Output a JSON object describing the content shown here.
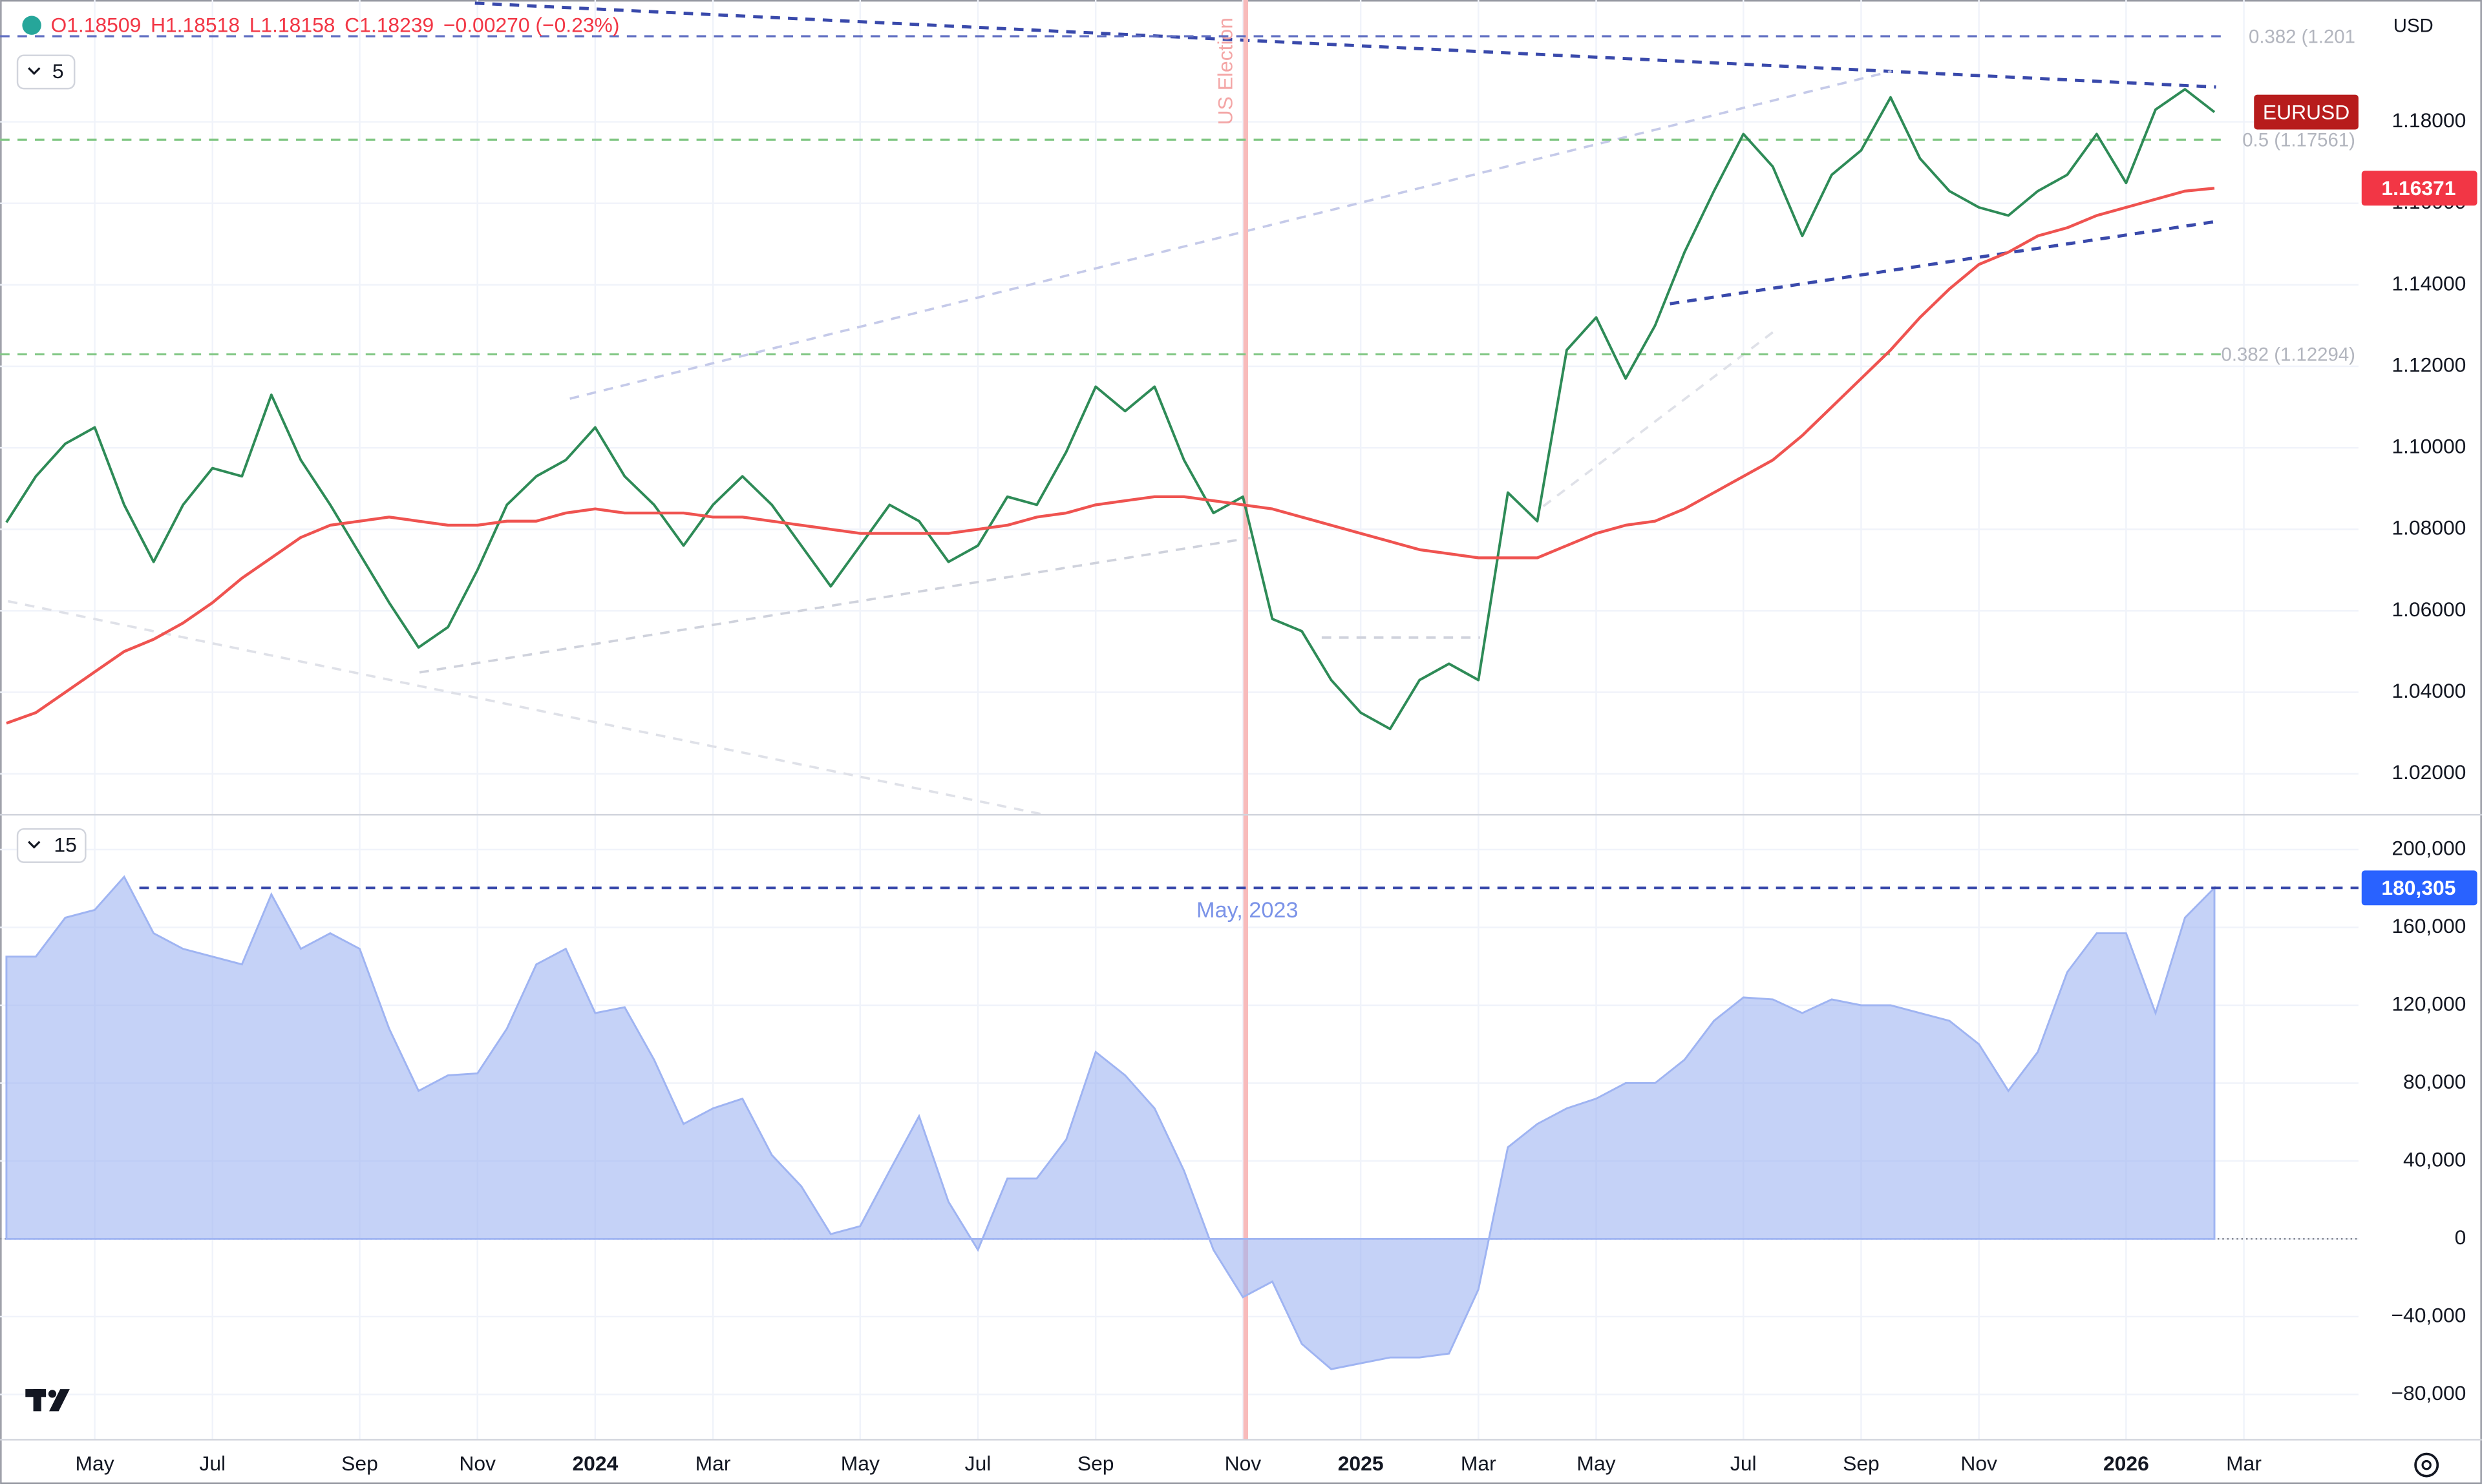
{
  "legend": [
    "O1.18509",
    "H1.18518",
    "L1.18158",
    "C1.18239",
    "−0.00270 (−0.23%)"
  ],
  "ui": {
    "currency": "USD",
    "pane_1_count": "5",
    "pane_2_count": "15"
  },
  "chart_data": [
    {
      "type": "line",
      "annotation": "US Election",
      "ylim": [
        1.0111,
        1.2099
      ],
      "yticks": [
        {
          "value": 1.02,
          "label": "1.02000"
        },
        {
          "value": 1.04,
          "label": "1.04000"
        },
        {
          "value": 1.06,
          "label": "1.06000"
        },
        {
          "value": 1.08,
          "label": "1.08000"
        },
        {
          "value": 1.1,
          "label": "1.10000"
        },
        {
          "value": 1.12,
          "label": "1.12000"
        },
        {
          "value": 1.14,
          "label": "1.14000"
        },
        {
          "value": 1.16,
          "label": "1.16000"
        },
        {
          "value": 1.18,
          "label": "1.18000"
        }
      ],
      "grid": true,
      "levels": [
        {
          "value": 1.201,
          "label": "0.382 (1.201",
          "color": "#5c6bc0"
        },
        {
          "value": 1.17561,
          "label": "0.5 (1.17561)",
          "color": "#81c784"
        },
        {
          "value": 1.12294,
          "label": "0.382 (1.12294)",
          "color": "#81c784"
        }
      ],
      "series": [
        {
          "name": "EURUSD",
          "color": "#2e8b57",
          "tag_color": "#b71c1c",
          "values": [
            1.0817,
            1.093,
            1.101,
            1.105,
            1.086,
            1.072,
            1.086,
            1.095,
            1.093,
            1.113,
            1.097,
            1.086,
            1.074,
            1.062,
            1.051,
            1.056,
            1.07,
            1.086,
            1.093,
            1.097,
            1.105,
            1.093,
            1.086,
            1.076,
            1.086,
            1.093,
            1.086,
            1.076,
            1.066,
            1.076,
            1.086,
            1.082,
            1.072,
            1.076,
            1.088,
            1.086,
            1.099,
            1.115,
            1.109,
            1.115,
            1.097,
            1.084,
            1.088,
            1.058,
            1.055,
            1.043,
            1.035,
            1.031,
            1.043,
            1.047,
            1.043,
            1.089,
            1.082,
            1.124,
            1.132,
            1.117,
            1.13,
            1.148,
            1.163,
            1.177,
            1.169,
            1.152,
            1.167,
            1.173,
            1.186,
            1.171,
            1.163,
            1.159,
            1.157,
            1.163,
            1.167,
            1.177,
            1.165,
            1.183,
            1.188,
            1.18239,
            null
          ]
        },
        {
          "color": "#ef5350",
          "tag_color": "#f23645",
          "values": [
            1.0324,
            1.035,
            1.04,
            1.045,
            1.05,
            1.053,
            1.057,
            1.062,
            1.068,
            1.073,
            1.078,
            1.081,
            1.082,
            1.083,
            1.082,
            1.081,
            1.081,
            1.082,
            1.082,
            1.084,
            1.085,
            1.084,
            1.084,
            1.084,
            1.083,
            1.083,
            1.082,
            1.081,
            1.08,
            1.079,
            1.079,
            1.079,
            1.079,
            1.08,
            1.081,
            1.083,
            1.084,
            1.086,
            1.087,
            1.088,
            1.088,
            1.087,
            1.086,
            1.085,
            1.083,
            1.081,
            1.079,
            1.077,
            1.075,
            1.074,
            1.073,
            1.073,
            1.073,
            1.076,
            1.079,
            1.081,
            1.082,
            1.085,
            1.089,
            1.093,
            1.097,
            1.103,
            1.11,
            1.117,
            1.124,
            1.132,
            1.139,
            1.145,
            1.148,
            1.152,
            1.154,
            1.157,
            1.159,
            1.161,
            1.163,
            1.16371,
            null
          ],
          "value_labels": [
            null,
            null,
            null,
            null,
            null,
            null,
            null,
            null,
            null,
            null,
            null,
            null,
            null,
            null,
            null,
            null,
            null,
            null,
            null,
            null,
            null,
            null,
            null,
            null,
            null,
            null,
            null,
            null,
            null,
            null,
            null,
            null,
            null,
            null,
            null,
            null,
            null,
            null,
            null,
            null,
            null,
            null,
            null,
            null,
            null,
            null,
            null,
            null,
            null,
            null,
            null,
            null,
            null,
            null,
            null,
            null,
            null,
            null,
            null,
            null,
            null,
            null,
            null,
            null,
            null,
            null,
            null,
            null,
            null,
            null,
            null,
            null,
            null,
            null,
            null,
            "1.16371",
            null
          ]
        }
      ]
    },
    {
      "type": "area",
      "annotation": "May, 2023",
      "categories": [
        null,
        null,
        null,
        "May",
        null,
        null,
        null,
        "Jul",
        null,
        null,
        null,
        null,
        "Sep",
        null,
        null,
        null,
        "Nov",
        null,
        null,
        null,
        "2024",
        null,
        null,
        null,
        "Mar",
        null,
        null,
        null,
        null,
        "May",
        null,
        null,
        null,
        "Jul",
        null,
        null,
        null,
        "Sep",
        null,
        null,
        null,
        null,
        "Nov",
        null,
        null,
        null,
        "2025",
        null,
        null,
        null,
        "Mar",
        null,
        null,
        null,
        "May",
        null,
        null,
        null,
        null,
        "Jul",
        null,
        null,
        null,
        "Sep",
        null,
        null,
        null,
        "Nov",
        null,
        null,
        null,
        null,
        "2026",
        null,
        null,
        null,
        "Mar"
      ],
      "ylim": [
        -103250,
        215450
      ],
      "yticks": [
        {
          "value": -80000,
          "label": "−80,000"
        },
        {
          "value": -40000,
          "label": "−40,000"
        },
        0,
        {
          "value": 40000,
          "label": "40,000"
        },
        {
          "value": 80000,
          "label": "80,000"
        },
        {
          "value": 120000,
          "label": "120,000"
        },
        {
          "value": 160000,
          "label": "160,000"
        },
        {
          "value": 200000,
          "label": "200,000"
        }
      ],
      "grid": true,
      "series": [
        {
          "color": "#9fb4f2",
          "tag_color": "#2962ff",
          "values": [
            145000,
            145000,
            165000,
            169000,
            186000,
            157000,
            149000,
            145000,
            141000,
            177000,
            149000,
            157000,
            149000,
            108000,
            76000,
            84000,
            85000,
            108000,
            141000,
            149000,
            116000,
            119000,
            92000,
            59000,
            67000,
            72000,
            43000,
            27000,
            2400,
            6500,
            35000,
            63000,
            19000,
            -5700,
            31000,
            31000,
            51000,
            96000,
            84000,
            67000,
            35000,
            -5700,
            -30000,
            -22000,
            -54000,
            -67000,
            -64000,
            -61000,
            -61000,
            -59000,
            -26000,
            47000,
            59000,
            67000,
            72000,
            80000,
            80000,
            92000,
            112000,
            124000,
            123000,
            116000,
            123000,
            120000,
            120000,
            116000,
            112000,
            100000,
            76000,
            96000,
            137000,
            157000,
            157000,
            116000,
            165000,
            180305,
            null
          ],
          "value_labels": [
            null,
            null,
            null,
            null,
            null,
            null,
            null,
            null,
            null,
            null,
            null,
            null,
            null,
            null,
            null,
            null,
            null,
            null,
            null,
            null,
            null,
            null,
            null,
            null,
            null,
            null,
            null,
            null,
            null,
            null,
            null,
            null,
            null,
            null,
            null,
            null,
            null,
            null,
            null,
            null,
            null,
            null,
            null,
            null,
            null,
            null,
            null,
            null,
            null,
            null,
            null,
            null,
            null,
            null,
            null,
            null,
            null,
            null,
            null,
            null,
            null,
            null,
            null,
            null,
            null,
            null,
            null,
            null,
            null,
            null,
            null,
            null,
            null,
            null,
            null,
            "180,305",
            null
          ]
        }
      ]
    }
  ]
}
